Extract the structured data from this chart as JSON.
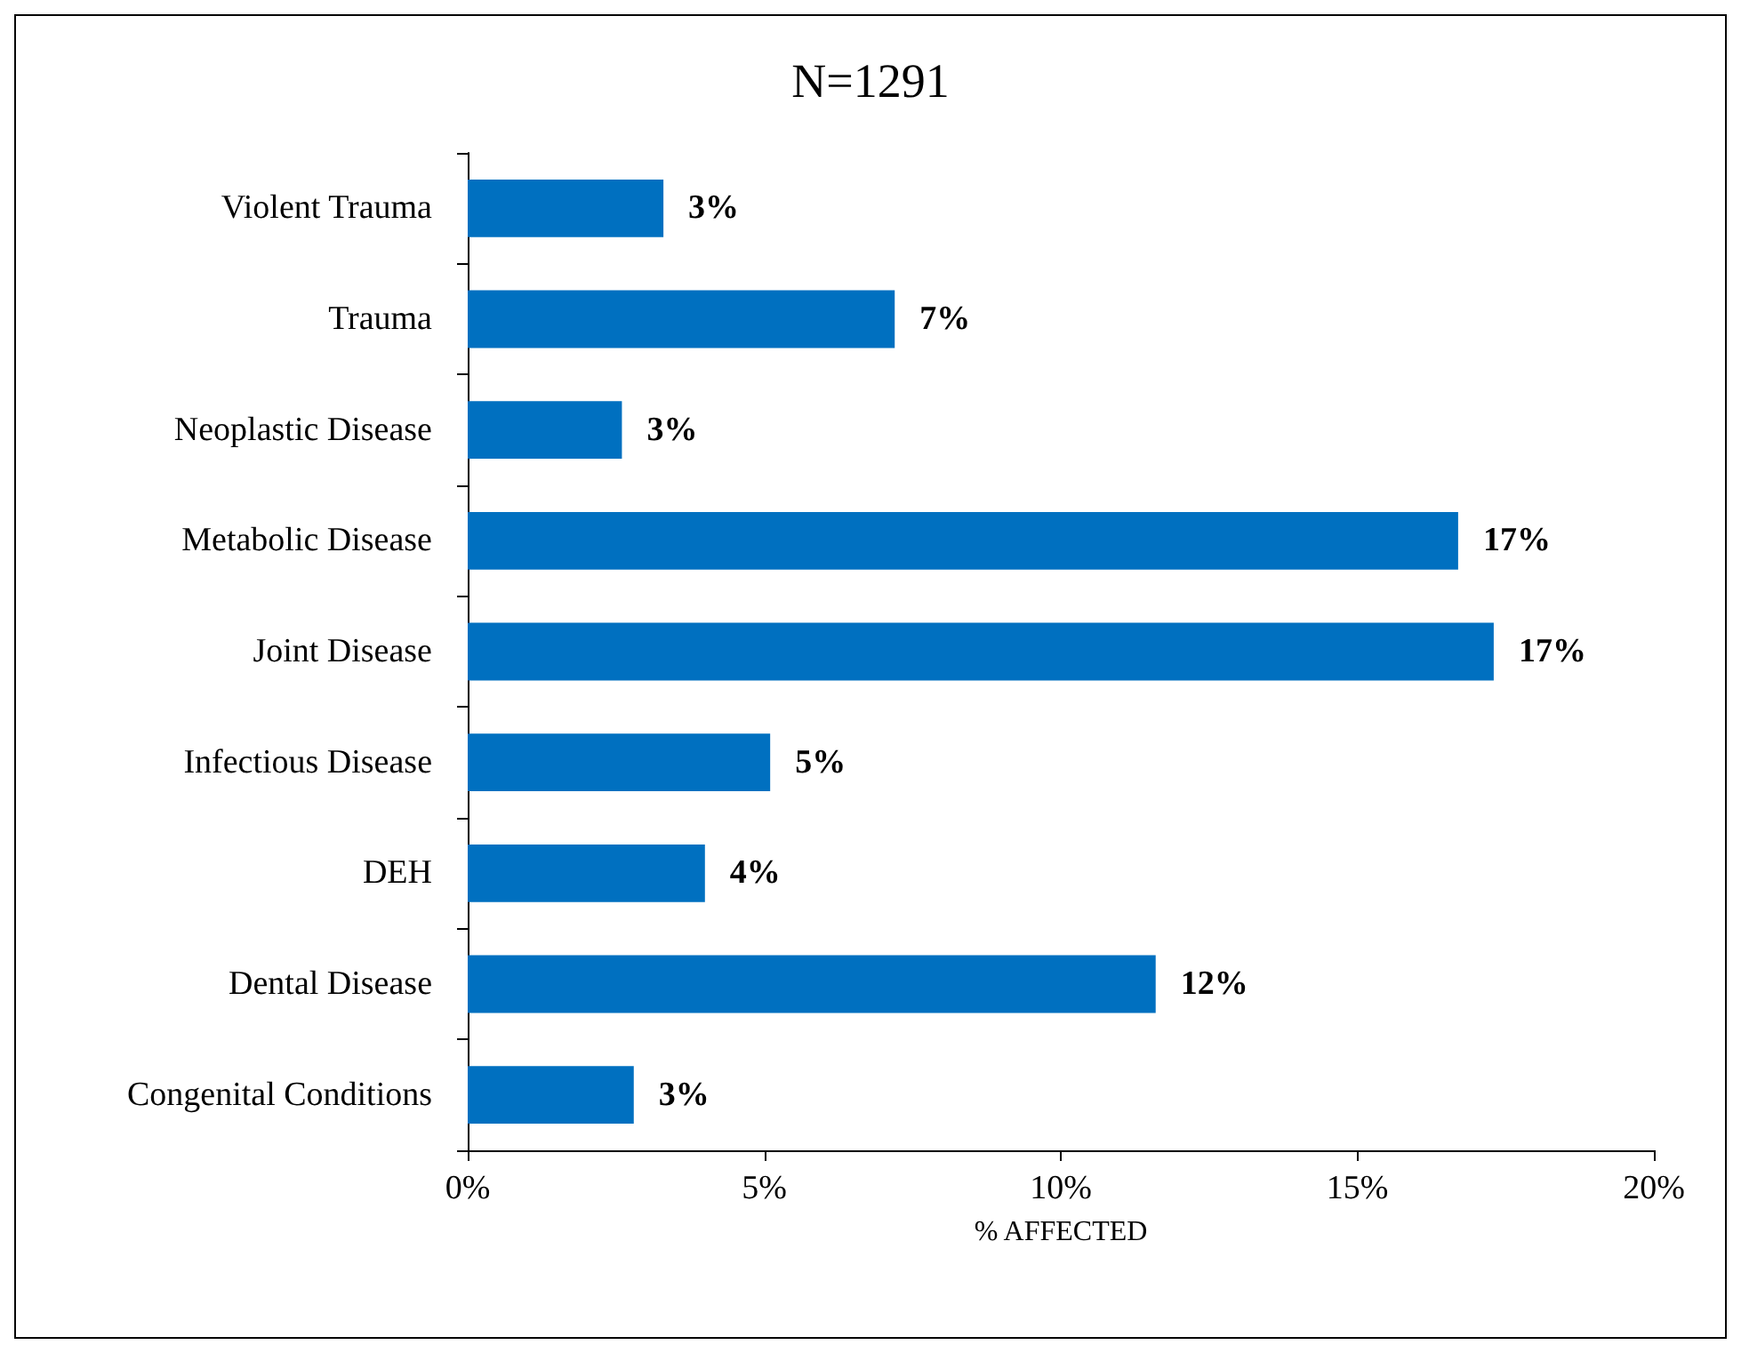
{
  "chart_data": {
    "type": "bar",
    "orientation": "horizontal",
    "title": "N=1291",
    "xlabel": "% AFFECTED",
    "categories": [
      "Violent Trauma",
      "Trauma",
      "Neoplastic Disease",
      "Metabolic Disease",
      "Joint Disease",
      "Infectious Disease",
      "DEH",
      "Dental Disease",
      "Congenital Conditions"
    ],
    "values": [
      3.3,
      7.2,
      2.6,
      16.7,
      17.3,
      5.1,
      4.0,
      11.6,
      2.8
    ],
    "value_labels": [
      "3%",
      "7%",
      "3%",
      "17%",
      "17%",
      "5%",
      "4%",
      "12%",
      "3%"
    ],
    "color": "#0070c0",
    "xlim": [
      0,
      20
    ],
    "xticks": [
      {
        "value": 0,
        "label": "0%"
      },
      {
        "value": 5,
        "label": "5%"
      },
      {
        "value": 10,
        "label": "10%"
      },
      {
        "value": 15,
        "label": "15%"
      },
      {
        "value": 20,
        "label": "20%"
      }
    ],
    "grid": false
  }
}
